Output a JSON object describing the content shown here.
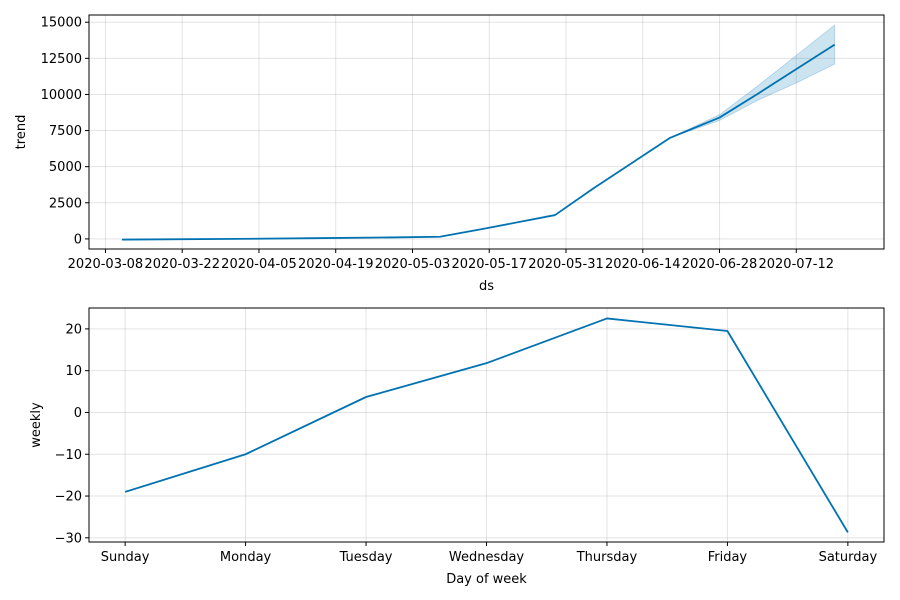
{
  "chart_data": [
    {
      "type": "line",
      "xlabel": "ds",
      "ylabel": "trend",
      "ylim": [
        -700,
        15500
      ],
      "xlim": [
        "2020-03-05",
        "2020-07-28"
      ],
      "grid": true,
      "color": "#0072B2",
      "band_color": "#0072B2",
      "x_ticks": [
        "2020-03-08",
        "2020-03-22",
        "2020-04-05",
        "2020-04-19",
        "2020-05-03",
        "2020-05-17",
        "2020-05-31",
        "2020-06-14",
        "2020-06-28",
        "2020-07-12"
      ],
      "y_ticks": [
        0,
        2500,
        5000,
        7500,
        10000,
        12500,
        15000
      ],
      "series": [
        {
          "x": [
            "2020-03-11",
            "2020-04-01",
            "2020-04-15",
            "2020-04-29",
            "2020-05-08",
            "2020-05-16",
            "2020-05-29",
            "2020-06-05",
            "2020-06-19",
            "2020-06-28",
            "2020-07-05",
            "2020-07-12",
            "2020-07-19"
          ],
          "y": [
            -50,
            0,
            50,
            100,
            150,
            700,
            1650,
            3500,
            7000,
            8400,
            10050,
            11750,
            13450
          ],
          "upper": [
            -50,
            0,
            50,
            100,
            150,
            700,
            1650,
            3500,
            7000,
            8600,
            10600,
            12700,
            14800
          ],
          "lower": [
            -50,
            0,
            50,
            100,
            150,
            700,
            1650,
            3500,
            7000,
            8200,
            9600,
            10800,
            12100
          ]
        }
      ]
    },
    {
      "type": "line",
      "xlabel": "Day of week",
      "ylabel": "weekly",
      "ylim": [
        -31,
        25
      ],
      "grid": true,
      "color": "#0072B2",
      "categories": [
        "Sunday",
        "Monday",
        "Tuesday",
        "Wednesday",
        "Thursday",
        "Friday",
        "Saturday"
      ],
      "y_ticks": [
        -30,
        -20,
        -10,
        0,
        10,
        20
      ],
      "series": [
        {
          "values": [
            -19,
            -10,
            3.7,
            11.8,
            22.5,
            19.5,
            -28.7
          ]
        }
      ]
    }
  ]
}
